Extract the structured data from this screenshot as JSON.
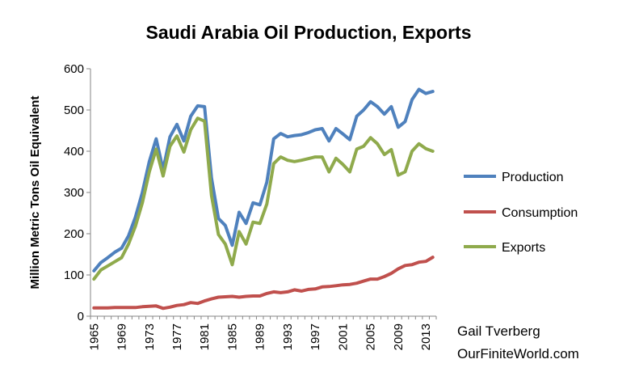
{
  "chart_data": {
    "type": "line",
    "title": "Saudi Arabia Oil Production, Exports",
    "xlabel": "",
    "ylabel": "Million Metric Tons Oil Equivalent",
    "ylim": [
      0,
      600
    ],
    "xlim": [
      1965,
      2014
    ],
    "y_ticks": [
      "0",
      "100",
      "200",
      "300",
      "400",
      "500",
      "600"
    ],
    "x_ticks": [
      "1965",
      "1969",
      "1973",
      "1977",
      "1981",
      "1985",
      "1989",
      "1993",
      "1997",
      "2001",
      "2005",
      "2009",
      "2013"
    ],
    "grid": false,
    "legend_position": "right",
    "x": [
      1965,
      1966,
      1967,
      1968,
      1969,
      1970,
      1971,
      1972,
      1973,
      1974,
      1975,
      1976,
      1977,
      1978,
      1979,
      1980,
      1981,
      1982,
      1983,
      1984,
      1985,
      1986,
      1987,
      1988,
      1989,
      1990,
      1991,
      1992,
      1993,
      1994,
      1995,
      1996,
      1997,
      1998,
      1999,
      2000,
      2001,
      2002,
      2003,
      2004,
      2005,
      2006,
      2007,
      2008,
      2009,
      2010,
      2011,
      2012,
      2013,
      2014
    ],
    "series": [
      {
        "name": "Production",
        "color": "#4f81bd",
        "values": [
          110,
          130,
          142,
          155,
          165,
          195,
          240,
          300,
          375,
          430,
          355,
          435,
          465,
          425,
          485,
          510,
          508,
          335,
          237,
          220,
          172,
          252,
          225,
          275,
          270,
          325,
          430,
          443,
          435,
          438,
          440,
          445,
          452,
          455,
          425,
          455,
          442,
          428,
          485,
          500,
          520,
          508,
          490,
          508,
          458,
          472,
          525,
          550,
          540,
          545
        ]
      },
      {
        "name": "Consumption",
        "color": "#c0504d",
        "values": [
          20,
          20,
          20,
          21,
          21,
          21,
          21,
          23,
          24,
          25,
          19,
          22,
          26,
          28,
          33,
          31,
          37,
          42,
          46,
          47,
          48,
          46,
          48,
          49,
          49,
          55,
          59,
          57,
          59,
          64,
          61,
          65,
          66,
          71,
          72,
          74,
          76,
          77,
          80,
          85,
          90,
          90,
          96,
          104,
          115,
          123,
          125,
          131,
          133,
          143
        ]
      },
      {
        "name": "Exports",
        "color": "#8faa4c",
        "values": [
          90,
          112,
          122,
          132,
          142,
          175,
          218,
          275,
          350,
          405,
          340,
          412,
          437,
          398,
          452,
          480,
          473,
          293,
          198,
          175,
          125,
          205,
          175,
          228,
          225,
          272,
          370,
          386,
          378,
          375,
          378,
          382,
          386,
          386,
          350,
          383,
          368,
          350,
          405,
          412,
          433,
          418,
          392,
          404,
          342,
          350,
          400,
          418,
          406,
          400
        ]
      }
    ]
  },
  "credit": {
    "line1": "Gail Tverberg",
    "line2": "OurFiniteWorld.com"
  }
}
